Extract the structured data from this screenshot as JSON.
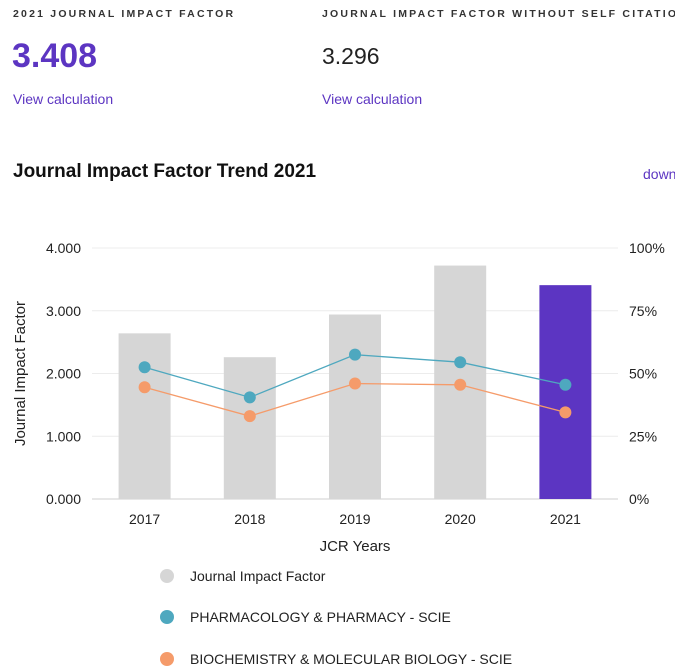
{
  "header": {
    "jif_label": "2021 JOURNAL IMPACT FACTOR",
    "jif_value": "3.408",
    "jif_link": "View calculation",
    "jif_no_self_label": "JOURNAL IMPACT FACTOR WITHOUT SELF CITATIONS",
    "jif_no_self_value": "3.296",
    "jif_no_self_link": "View calculation"
  },
  "trend": {
    "title": "Journal Impact Factor Trend 2021",
    "download_label": "download"
  },
  "chart_data": {
    "type": "bar",
    "title": "",
    "xlabel": "JCR Years",
    "ylabel": "Journal Impact Factor",
    "categories": [
      "2017",
      "2018",
      "2019",
      "2020",
      "2021"
    ],
    "ylim": [
      0,
      4
    ],
    "y_ticks": [
      "0.000",
      "1.000",
      "2.000",
      "3.000",
      "4.000"
    ],
    "y2lim": [
      0,
      100
    ],
    "y2_ticks": [
      "0%",
      "25%",
      "50%",
      "75%",
      "100%"
    ],
    "grid": true,
    "legend_position": "bottom",
    "series": [
      {
        "name": "Journal Impact Factor",
        "type": "bar",
        "axis": "left",
        "values": [
          2.64,
          2.26,
          2.94,
          3.72,
          3.408
        ],
        "color": "#d6d6d6",
        "highlight_color": "#5c35c2",
        "highlight_index": 4
      },
      {
        "name": "PHARMACOLOGY & PHARMACY - SCIE",
        "type": "line",
        "axis": "right",
        "values": [
          52.5,
          40.5,
          57.5,
          54.5,
          45.5
        ],
        "color": "#4ea8bf"
      },
      {
        "name": "BIOCHEMISTRY & MOLECULAR BIOLOGY - SCIE",
        "type": "line",
        "axis": "right",
        "values": [
          44.5,
          33,
          46,
          45.5,
          34.5
        ],
        "color": "#f59b6a"
      }
    ]
  }
}
